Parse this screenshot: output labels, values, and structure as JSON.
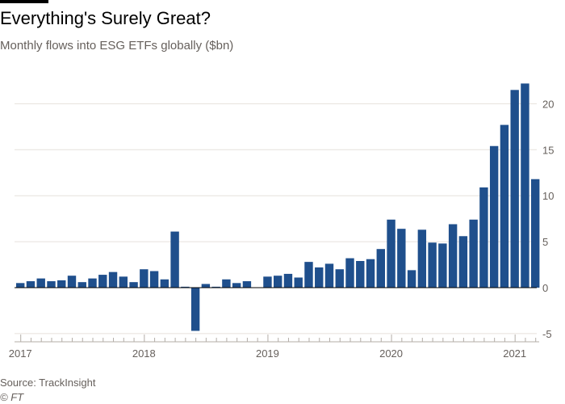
{
  "header": {
    "title": "Everything's Surely Great?",
    "subtitle": "Monthly flows into ESG ETFs globally ($bn)"
  },
  "footer": {
    "source": "Source: TrackInsight",
    "credit": "© FT"
  },
  "colors": {
    "bar": "#1f4f8c",
    "grid": "#e6e1dc",
    "zero_line": "#000000",
    "axis": "#b3ada7",
    "text": "#66605c",
    "rule": "#000000"
  },
  "chart_data": {
    "type": "bar",
    "title": "Everything's Surely Great?",
    "subtitle": "Monthly flows into ESG ETFs globally ($bn)",
    "xlabel": "",
    "ylabel": "",
    "ylim": [
      -5,
      23
    ],
    "y_ticks": [
      -5,
      0,
      5,
      10,
      15,
      20
    ],
    "y_tick_labels": [
      "-5",
      "0",
      "5",
      "10",
      "15",
      "20"
    ],
    "x_tick_labels": [
      "2017",
      "2018",
      "2019",
      "2020",
      "2021"
    ],
    "grid": true,
    "categories": [
      "2017-01",
      "2017-02",
      "2017-03",
      "2017-04",
      "2017-05",
      "2017-06",
      "2017-07",
      "2017-08",
      "2017-09",
      "2017-10",
      "2017-11",
      "2017-12",
      "2018-01",
      "2018-02",
      "2018-03",
      "2018-04",
      "2018-05",
      "2018-06",
      "2018-07",
      "2018-08",
      "2018-09",
      "2018-10",
      "2018-11",
      "2018-12",
      "2019-01",
      "2019-02",
      "2019-03",
      "2019-04",
      "2019-05",
      "2019-06",
      "2019-07",
      "2019-08",
      "2019-09",
      "2019-10",
      "2019-11",
      "2019-12",
      "2020-01",
      "2020-02",
      "2020-03",
      "2020-04",
      "2020-05",
      "2020-06",
      "2020-07",
      "2020-08",
      "2020-09",
      "2020-10",
      "2020-11",
      "2020-12",
      "2021-01",
      "2021-02",
      "2021-03"
    ],
    "values": [
      0.5,
      0.7,
      1.0,
      0.7,
      0.8,
      1.3,
      0.6,
      1.0,
      1.4,
      1.7,
      1.2,
      0.6,
      2.0,
      1.8,
      0.9,
      6.1,
      0.1,
      -4.7,
      0.4,
      0.1,
      0.9,
      0.5,
      0.7,
      0.0,
      1.2,
      1.3,
      1.5,
      1.1,
      2.8,
      2.2,
      2.6,
      2.0,
      3.2,
      2.9,
      3.1,
      4.2,
      7.4,
      6.4,
      1.9,
      6.3,
      4.9,
      4.8,
      6.9,
      5.6,
      7.4,
      10.9,
      15.4,
      17.7,
      21.5,
      22.2,
      11.8
    ]
  }
}
